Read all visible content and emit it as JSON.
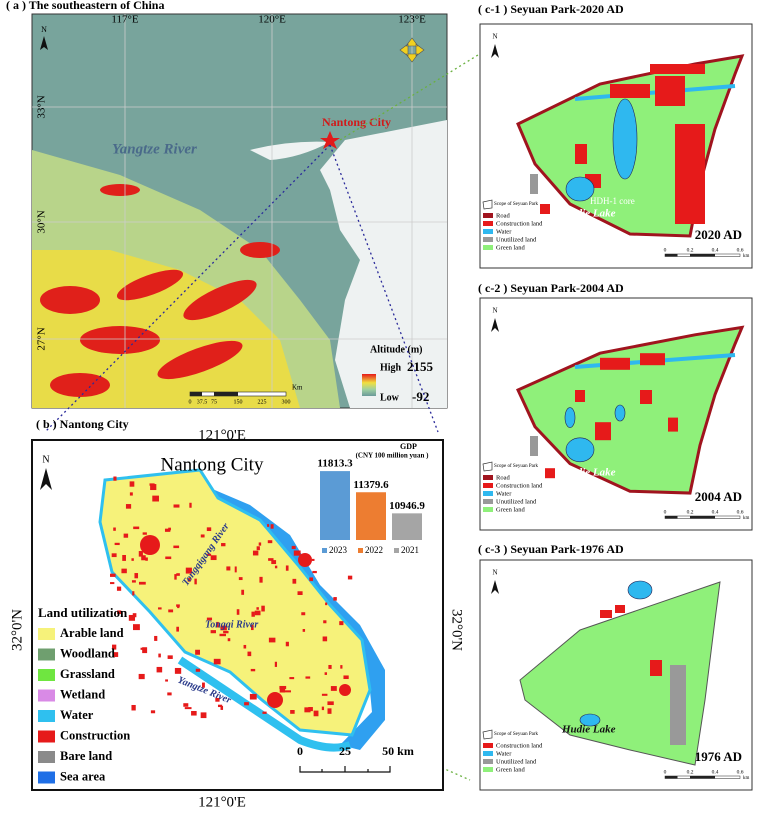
{
  "panel_a": {
    "title": "( a ) The southeastern of China",
    "lon_labels": [
      "117°E",
      "120°E",
      "123°E"
    ],
    "lat_labels": [
      "33°N",
      "30°N",
      "27°N"
    ],
    "north": "N",
    "city": "Nantong City",
    "river": "Yangtze River",
    "legend_title": "Altitude (m)",
    "high": "High",
    "high_value": "2155",
    "low": "Low",
    "low_value": "-92",
    "scale": [
      "0",
      "37.5",
      "75",
      "150",
      "225",
      "300"
    ],
    "scale_unit": "Km"
  },
  "panel_b": {
    "title": "( b ) Nantong City",
    "lon_label": "121°0'E",
    "lat_label": "32°0'N",
    "north": "N",
    "map_title": "Nantong City",
    "rivers": [
      "Tongqigang River",
      "Tongqi River",
      "Yangtze River"
    ],
    "legend_title": "Land utilization",
    "legend": [
      {
        "name": "Arable land",
        "color": "#f6f27a"
      },
      {
        "name": "Woodland",
        "color": "#6f9f6f"
      },
      {
        "name": "Grassland",
        "color": "#6fe640"
      },
      {
        "name": "Wetland",
        "color": "#d98ae6"
      },
      {
        "name": "Water",
        "color": "#2fc0ef"
      },
      {
        "name": "Construction",
        "color": "#e61a1a"
      },
      {
        "name": "Bare land",
        "color": "#8a8a8a"
      },
      {
        "name": "Sea area",
        "color": "#1f6fe6"
      }
    ],
    "scale": [
      "0",
      "25",
      "50 km"
    ]
  },
  "chart_data": {
    "type": "bar",
    "title": "GDP",
    "subtitle": "(CNY 100 million yuan )",
    "categories": [
      "2023",
      "2022",
      "2021"
    ],
    "values": [
      11813.3,
      11379.6,
      10946.9
    ],
    "colors": [
      "#5b9bd5",
      "#ed7d31",
      "#a5a5a5"
    ],
    "ylim": [
      10400,
      12000
    ]
  },
  "panel_c": [
    {
      "title": "( c-1 ) Seyuan Park-2020 AD",
      "north": "N",
      "scope": "Scope of Seyuan Park",
      "legend": [
        {
          "name": "Road",
          "color": "#a0141e"
        },
        {
          "name": "Construction land",
          "color": "#e61a1a"
        },
        {
          "name": "Water",
          "color": "#2fb8ef"
        },
        {
          "name": "Unutilized land",
          "color": "#999999"
        },
        {
          "name": "Green land",
          "color": "#8ff07a"
        }
      ],
      "lake": "Hudie Lake",
      "core": "HDH-1 core",
      "year": "2020 AD",
      "scale": [
        "0",
        "0.2",
        "0.4",
        "0.6"
      ],
      "scale_unit": "km"
    },
    {
      "title": "( c-2 ) Seyuan Park-2004 AD",
      "north": "N",
      "scope": "Scope of Seyuan Park",
      "legend": [
        {
          "name": "Road",
          "color": "#a0141e"
        },
        {
          "name": "Construction land",
          "color": "#e61a1a"
        },
        {
          "name": "Water",
          "color": "#2fb8ef"
        },
        {
          "name": "Unutilized land",
          "color": "#999999"
        },
        {
          "name": "Green land",
          "color": "#8ff07a"
        }
      ],
      "lake": "Hudie Lake",
      "year": "2004 AD",
      "scale": [
        "0",
        "0.2",
        "0.4",
        "0.6"
      ],
      "scale_unit": "km"
    },
    {
      "title": "( c-3 ) Seyuan Park-1976 AD",
      "north": "N",
      "scope": "Scope of Seyuan Park",
      "legend": [
        {
          "name": "Construction land",
          "color": "#e61a1a"
        },
        {
          "name": "Water",
          "color": "#2fb8ef"
        },
        {
          "name": "Unutilized land",
          "color": "#999999"
        },
        {
          "name": "Green land",
          "color": "#8ff07a"
        }
      ],
      "lake": "Hudie Lake",
      "year": "1976 AD",
      "scale": [
        "0",
        "0.2",
        "0.4",
        "0.6"
      ],
      "scale_unit": "km"
    }
  ]
}
